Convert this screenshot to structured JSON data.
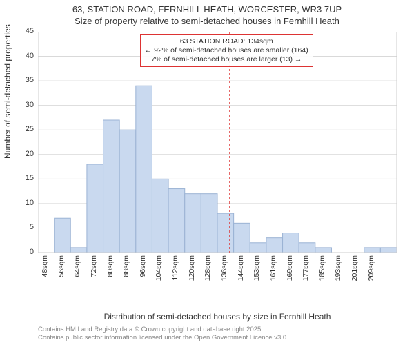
{
  "title": {
    "line1": "63, STATION ROAD, FERNHILL HEATH, WORCESTER, WR3 7UP",
    "line2": "Size of property relative to semi-detached houses in Fernhill Heath"
  },
  "y_axis": {
    "label": "Number of semi-detached properties",
    "min": 0,
    "max": 45,
    "ticks": [
      0,
      5,
      10,
      15,
      20,
      25,
      30,
      35,
      40,
      45
    ]
  },
  "x_axis": {
    "label": "Distribution of semi-detached houses by size in Fernhill Heath",
    "categories": [
      "48sqm",
      "56sqm",
      "64sqm",
      "72sqm",
      "80sqm",
      "88sqm",
      "96sqm",
      "104sqm",
      "112sqm",
      "120sqm",
      "128sqm",
      "136sqm",
      "144sqm",
      "153sqm",
      "161sqm",
      "169sqm",
      "177sqm",
      "185sqm",
      "193sqm",
      "201sqm",
      "209sqm"
    ]
  },
  "histogram": {
    "type": "histogram",
    "values": [
      0,
      7,
      1,
      18,
      27,
      25,
      34,
      15,
      13,
      12,
      12,
      8,
      6,
      2,
      3,
      4,
      2,
      1,
      0,
      0,
      1,
      1
    ],
    "bar_fill": "#c9d9ef",
    "bar_stroke": "#9bb3d4",
    "bar_stroke_width": 1,
    "bar_gap_ratio": 0.0
  },
  "reference_line": {
    "x_value_sqm": 134,
    "color": "#d33",
    "dash": "3,3",
    "width": 1
  },
  "annotation": {
    "line1": "63 STATION ROAD: 134sqm",
    "line2": "← 92% of semi-detached houses are smaller (164)",
    "line3": "7% of semi-detached houses are larger (13) →",
    "border": "#d33"
  },
  "grid": {
    "color": "#d9d9d9",
    "width": 1
  },
  "plot": {
    "background": "#ffffff",
    "border": "#cccccc"
  },
  "footnote": {
    "line1": "Contains HM Land Registry data © Crown copyright and database right 2025.",
    "line2": "Contains public sector information licensed under the Open Government Licence v3.0."
  }
}
